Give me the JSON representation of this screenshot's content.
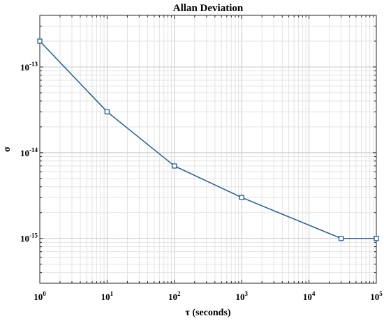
{
  "chart_data": {
    "type": "line",
    "title": "Allan Deviation",
    "xlabel": "τ (seconds)",
    "ylabel": "σ",
    "xscale": "log",
    "yscale": "log",
    "xlim": [
      1,
      100000
    ],
    "ylim": [
      3e-16,
      4e-13
    ],
    "grid": true,
    "x_ticks": [
      {
        "base": "10",
        "exp": "0"
      },
      {
        "base": "10",
        "exp": "1"
      },
      {
        "base": "10",
        "exp": "2"
      },
      {
        "base": "10",
        "exp": "3"
      },
      {
        "base": "10",
        "exp": "4"
      },
      {
        "base": "10",
        "exp": "5"
      }
    ],
    "y_ticks": [
      {
        "base": "10",
        "exp": "-13"
      },
      {
        "base": "10",
        "exp": "-14"
      },
      {
        "base": "10",
        "exp": "-15"
      }
    ],
    "series": [
      {
        "x": [
          1,
          10,
          100,
          1000,
          30000,
          100000
        ],
        "y": [
          2e-13,
          3e-14,
          7e-15,
          3e-15,
          1e-15,
          1e-15
        ],
        "color": "#1f5f99",
        "marker": "square"
      }
    ]
  }
}
